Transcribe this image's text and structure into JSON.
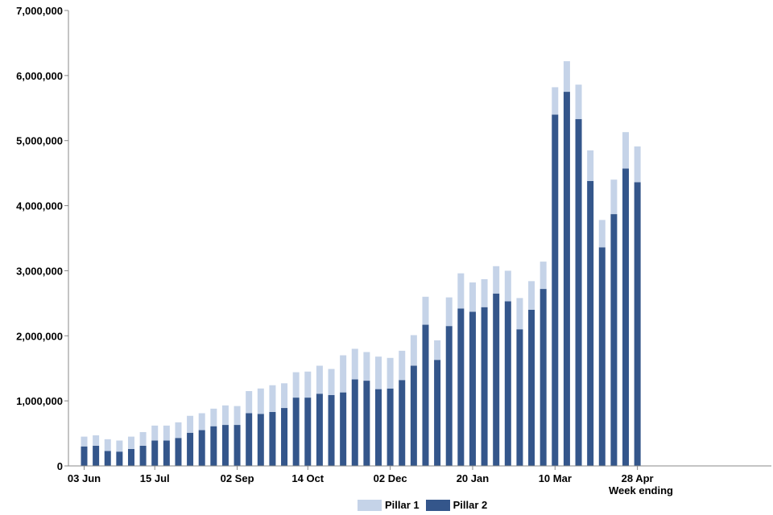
{
  "chart_data": {
    "type": "bar",
    "stacked": true,
    "xlabel": "Week ending",
    "ylabel": "",
    "ylim": [
      0,
      7000000
    ],
    "yticks": [
      0,
      1000000,
      2000000,
      3000000,
      4000000,
      5000000,
      6000000,
      7000000
    ],
    "ytick_labels": [
      "0",
      "1,000,000",
      "2,000,000",
      "3,000,000",
      "4,000,000",
      "5,000,000",
      "6,000,000",
      "7,000,000"
    ],
    "xtick_labels": [
      {
        "index": 0,
        "label": "03 Jun"
      },
      {
        "index": 6,
        "label": "15 Jul"
      },
      {
        "index": 13,
        "label": "02 Sep"
      },
      {
        "index": 19,
        "label": "14 Oct"
      },
      {
        "index": 26,
        "label": "02 Dec"
      },
      {
        "index": 33,
        "label": "20 Jan"
      },
      {
        "index": 40,
        "label": "10 Mar"
      },
      {
        "index": 47,
        "label": "28 Apr"
      }
    ],
    "grid": false,
    "legend_position": "bottom",
    "series": [
      {
        "name": "Pillar 2",
        "color": "#34568b",
        "values": [
          300000,
          310000,
          230000,
          220000,
          260000,
          310000,
          390000,
          390000,
          430000,
          510000,
          550000,
          610000,
          630000,
          630000,
          810000,
          800000,
          830000,
          890000,
          1050000,
          1050000,
          1110000,
          1090000,
          1130000,
          1330000,
          1310000,
          1180000,
          1190000,
          1320000,
          1540000,
          2170000,
          1630000,
          2150000,
          2420000,
          2370000,
          2440000,
          2650000,
          2530000,
          2100000,
          2400000,
          2720000,
          5400000,
          5750000,
          5330000,
          4380000,
          3360000,
          3870000,
          4570000,
          4360000
        ]
      },
      {
        "name": "Pillar 1",
        "color": "#c5d3e8",
        "values": [
          150000,
          160000,
          180000,
          170000,
          190000,
          210000,
          230000,
          230000,
          240000,
          260000,
          260000,
          270000,
          300000,
          290000,
          340000,
          390000,
          410000,
          380000,
          390000,
          400000,
          430000,
          400000,
          570000,
          470000,
          440000,
          500000,
          470000,
          450000,
          470000,
          430000,
          300000,
          440000,
          540000,
          450000,
          430000,
          420000,
          470000,
          480000,
          440000,
          420000,
          420000,
          470000,
          530000,
          470000,
          420000,
          530000,
          560000,
          550000
        ]
      }
    ]
  }
}
